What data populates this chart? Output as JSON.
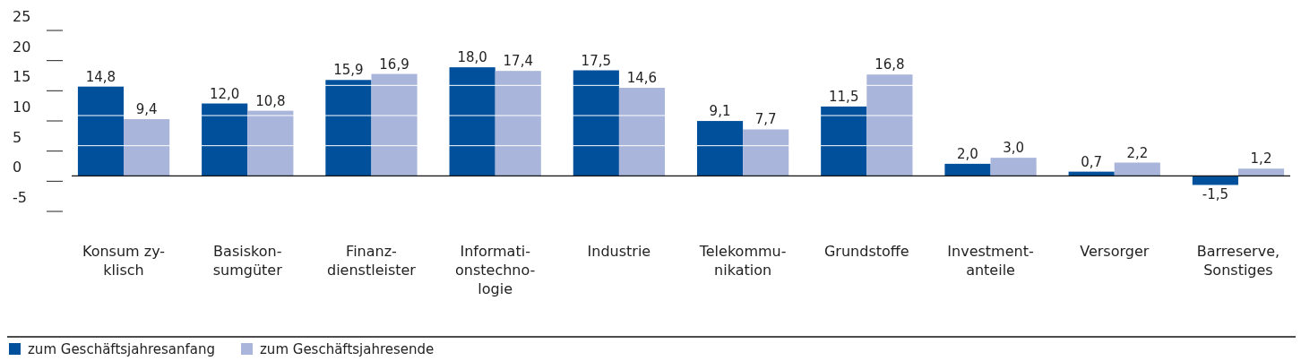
{
  "chart_data": {
    "type": "bar",
    "categories": [
      "Konsum zy-\nklisch",
      "Basiskon-\nsumgüter",
      "Finanz-\ndienstleister",
      "Informati-\nonstechno-\nlogie",
      "Industrie",
      "Telekommu-\nnikation",
      "Grundstoffe",
      "Investment-\nanteile",
      "Versorger",
      "Barreserve,\nSonstiges"
    ],
    "series": [
      {
        "name": "zum Geschäftsjahresanfang",
        "color": "#00509b",
        "values": [
          14.8,
          12.0,
          15.9,
          18.0,
          17.5,
          9.1,
          11.5,
          2.0,
          0.7,
          -1.5
        ],
        "value_labels": [
          "14,8",
          "12,0",
          "15,9",
          "18,0",
          "17,5",
          "9,1",
          "11,5",
          "2,0",
          "0,7",
          "-1,5"
        ]
      },
      {
        "name": "zum Geschäftsjahresende",
        "color": "#a9b5da",
        "values": [
          9.4,
          10.8,
          16.9,
          17.4,
          14.6,
          7.7,
          16.8,
          3.0,
          2.2,
          1.2
        ],
        "value_labels": [
          "9,4",
          "10,8",
          "16,9",
          "17,4",
          "14,6",
          "7,7",
          "16,8",
          "3,0",
          "2,2",
          "1,2"
        ]
      }
    ],
    "ylim": [
      -5,
      25
    ],
    "yticks": [
      -5,
      0,
      5,
      10,
      15,
      20,
      25
    ],
    "grid": "y",
    "legend": "bottom left"
  }
}
